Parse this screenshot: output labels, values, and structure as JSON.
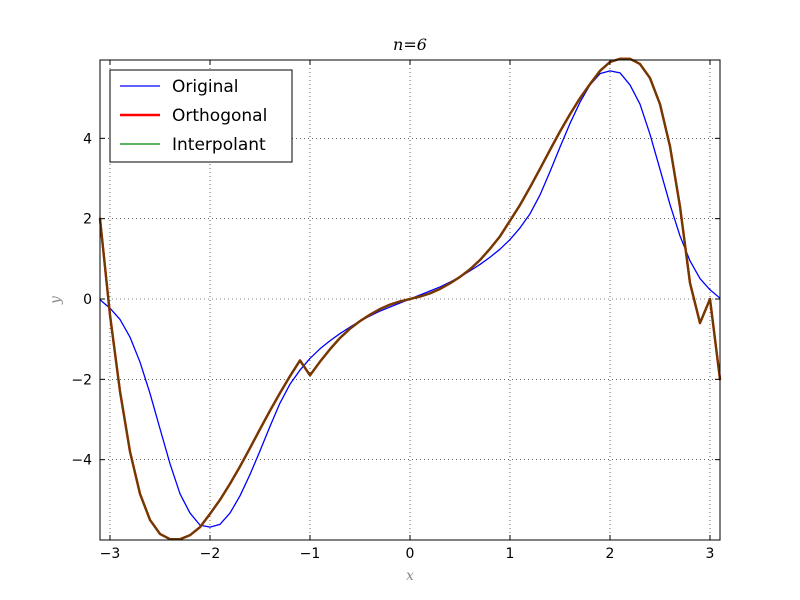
{
  "chart_data": {
    "type": "line",
    "title": "n=6",
    "xlabel": "x",
    "ylabel": "y",
    "xlim": [
      -3.1,
      3.1
    ],
    "ylim": [
      -6.0,
      5.95
    ],
    "xticks": [
      -3,
      -2,
      -1,
      0,
      1,
      2,
      3
    ],
    "xtick_labels": [
      "−3",
      "−2",
      "−1",
      "0",
      "1",
      "2",
      "3"
    ],
    "yticks": [
      -4,
      -2,
      0,
      2,
      4
    ],
    "ytick_labels": [
      "−4",
      "−2",
      "0",
      "2",
      "4"
    ],
    "grid": true,
    "legend_position": "top-left",
    "series": [
      {
        "name": "Original",
        "color": "#0000ff",
        "x": [
          -3.1,
          -3.0,
          -2.9,
          -2.8,
          -2.7,
          -2.6,
          -2.5,
          -2.4,
          -2.3,
          -2.2,
          -2.1,
          -2.0,
          -1.9,
          -1.8,
          -1.7,
          -1.6,
          -1.5,
          -1.4,
          -1.3,
          -1.2,
          -1.1,
          -1.0,
          -0.9,
          -0.8,
          -0.7,
          -0.6,
          -0.5,
          -0.4,
          -0.3,
          -0.2,
          -0.1,
          0.0,
          0.1,
          0.2,
          0.3,
          0.4,
          0.5,
          0.6,
          0.7,
          0.8,
          0.9,
          1.0,
          1.1,
          1.2,
          1.3,
          1.4,
          1.5,
          1.6,
          1.7,
          1.8,
          1.9,
          2.0,
          2.1,
          2.2,
          2.3,
          2.4,
          2.5,
          2.6,
          2.7,
          2.8,
          2.9,
          3.0,
          3.1
        ],
        "y": [
          -0.02,
          -0.23,
          -0.51,
          -0.95,
          -1.57,
          -2.35,
          -3.23,
          -4.1,
          -4.85,
          -5.33,
          -5.63,
          -5.68,
          -5.61,
          -5.33,
          -4.9,
          -4.37,
          -3.78,
          -3.17,
          -2.59,
          -2.12,
          -1.77,
          -1.48,
          -1.24,
          -1.04,
          -0.86,
          -0.7,
          -0.55,
          -0.42,
          -0.3,
          -0.2,
          -0.1,
          0.0,
          0.1,
          0.2,
          0.3,
          0.42,
          0.55,
          0.7,
          0.86,
          1.04,
          1.24,
          1.48,
          1.77,
          2.12,
          2.59,
          3.17,
          3.78,
          4.37,
          4.9,
          5.33,
          5.61,
          5.68,
          5.63,
          5.33,
          4.85,
          4.1,
          3.23,
          2.35,
          1.57,
          0.95,
          0.51,
          0.23,
          0.02
        ],
        "width": 1.3
      },
      {
        "name": "Orthogonal",
        "color": "#ff0000",
        "x": [
          -3.1,
          -3.0,
          -2.9,
          -2.8,
          -2.7,
          -2.6,
          -2.5,
          -2.4,
          -2.3,
          -2.2,
          -2.1,
          -2.0,
          -1.9,
          -1.8,
          -1.7,
          -1.6,
          -1.5,
          -1.4,
          -1.3,
          -1.2,
          -1.1,
          -1.0,
          -0.9,
          -0.8,
          -0.7,
          -0.6,
          -0.5,
          -0.4,
          -0.3,
          -0.2,
          -0.1,
          0.0,
          0.1,
          0.2,
          0.3,
          0.4,
          0.5,
          0.6,
          0.7,
          0.8,
          0.9,
          1.0,
          1.1,
          1.2,
          1.3,
          1.4,
          1.5,
          1.6,
          1.7,
          1.8,
          1.9,
          2.0,
          2.1,
          2.2,
          2.3,
          2.4,
          2.5,
          2.6,
          2.7,
          2.8,
          2.9,
          3.0,
          3.1
        ],
        "y": [
          2.0,
          -0.4,
          -2.3,
          -3.8,
          -4.85,
          -5.5,
          -5.85,
          -5.98,
          -5.98,
          -5.88,
          -5.68,
          -5.35,
          -5.0,
          -4.6,
          -4.17,
          -3.71,
          -3.24,
          -2.78,
          -2.34,
          -1.92,
          -1.53,
          -1.9,
          -1.56,
          -1.25,
          -0.97,
          -0.74,
          -0.55,
          -0.39,
          -0.25,
          -0.14,
          -0.06,
          0.0,
          0.06,
          0.14,
          0.25,
          0.39,
          0.55,
          0.74,
          0.97,
          1.25,
          1.56,
          1.95,
          2.34,
          2.78,
          3.24,
          3.71,
          4.17,
          4.6,
          5.0,
          5.35,
          5.68,
          5.9,
          5.98,
          5.98,
          5.85,
          5.5,
          4.85,
          3.8,
          2.3,
          0.4,
          -0.6,
          0.0,
          -2.0
        ],
        "width": 2.4
      },
      {
        "name": "Interpolant",
        "color": "#008000",
        "x": [
          -3.1,
          -3.0,
          -2.9,
          -2.8,
          -2.7,
          -2.6,
          -2.5,
          -2.4,
          -2.3,
          -2.2,
          -2.1,
          -2.0,
          -1.9,
          -1.8,
          -1.7,
          -1.6,
          -1.5,
          -1.4,
          -1.3,
          -1.2,
          -1.1,
          -1.0,
          -0.9,
          -0.8,
          -0.7,
          -0.6,
          -0.5,
          -0.4,
          -0.3,
          -0.2,
          -0.1,
          0.0,
          0.1,
          0.2,
          0.3,
          0.4,
          0.5,
          0.6,
          0.7,
          0.8,
          0.9,
          1.0,
          1.1,
          1.2,
          1.3,
          1.4,
          1.5,
          1.6,
          1.7,
          1.8,
          1.9,
          2.0,
          2.1,
          2.2,
          2.3,
          2.4,
          2.5,
          2.6,
          2.7,
          2.8,
          2.9,
          3.0,
          3.1
        ],
        "y": [
          2.0,
          -0.4,
          -2.3,
          -3.8,
          -4.85,
          -5.5,
          -5.85,
          -5.98,
          -5.98,
          -5.88,
          -5.68,
          -5.35,
          -5.0,
          -4.6,
          -4.17,
          -3.71,
          -3.24,
          -2.78,
          -2.34,
          -1.92,
          -1.53,
          -1.9,
          -1.56,
          -1.25,
          -0.97,
          -0.74,
          -0.55,
          -0.39,
          -0.25,
          -0.14,
          -0.06,
          0.0,
          0.06,
          0.14,
          0.25,
          0.39,
          0.55,
          0.74,
          0.97,
          1.25,
          1.56,
          1.95,
          2.34,
          2.78,
          3.24,
          3.71,
          4.17,
          4.6,
          5.0,
          5.35,
          5.68,
          5.9,
          5.98,
          5.98,
          5.85,
          5.5,
          4.85,
          3.8,
          2.3,
          0.4,
          -0.6,
          0.0,
          -2.0
        ],
        "width": 1.3
      }
    ],
    "overlay_color": "#6b3d00"
  }
}
